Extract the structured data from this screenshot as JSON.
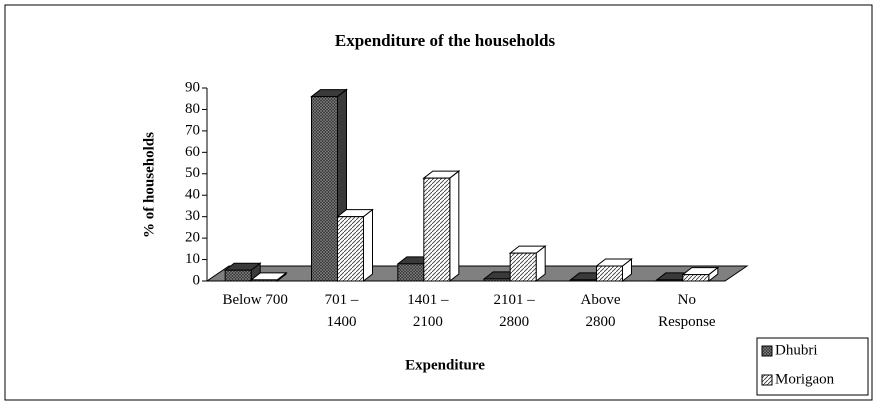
{
  "chart_data": {
    "type": "bar3d",
    "title": "Expenditure of the households",
    "x_label": "Expenditure",
    "y_label": "% of households",
    "categories": [
      "Below 700",
      "701 –\n1400",
      "1401 –\n2100",
      "2101 –\n2800",
      "Above\n2800",
      "No\nResponse"
    ],
    "series": [
      {
        "name": "Dhubri",
        "color": "#3a3a3a",
        "values": [
          5,
          86,
          8,
          1,
          0.5,
          0.5
        ]
      },
      {
        "name": "Morigaon",
        "color": "#ffffff",
        "values": [
          0.5,
          30,
          48,
          13,
          7,
          3
        ]
      }
    ],
    "ylim": [
      0,
      90
    ],
    "yticks": [
      0,
      10,
      20,
      30,
      40,
      50,
      60,
      70,
      80,
      90
    ],
    "legend": "right"
  }
}
